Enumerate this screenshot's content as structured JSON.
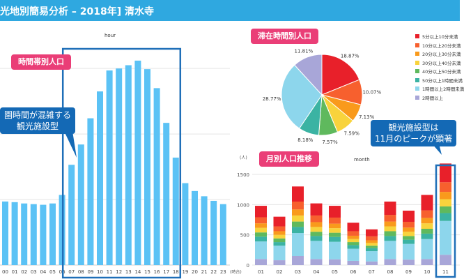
{
  "header": {
    "title": "光地別簡易分析 – 2018年] 清水寺"
  },
  "hourly": {
    "title": "hour",
    "label": "時間帯別人口",
    "unit_label": "(時台)",
    "callout_lines": [
      "園時間が混雑する",
      "観光施設型"
    ],
    "chart_data": {
      "type": "bar",
      "categories": [
        "00",
        "01",
        "02",
        "03",
        "04",
        "05",
        "06",
        "07",
        "08",
        "09",
        "10",
        "11",
        "12",
        "13",
        "14",
        "15",
        "16",
        "17",
        "18",
        "19",
        "20",
        "21",
        "22",
        "23"
      ],
      "values": [
        970,
        960,
        940,
        930,
        920,
        940,
        1070,
        1530,
        1840,
        2240,
        2650,
        2970,
        3000,
        3050,
        3120,
        2990,
        2700,
        2170,
        1640,
        1250,
        1130,
        1050,
        980,
        930
      ],
      "colors": {
        "bar": "#5bc2f5",
        "grid": "#e5e5e5",
        "highlight": "#1f6fb8"
      }
    }
  },
  "composition": {
    "label": "滞在時間別人口",
    "chart_data": {
      "type": "pie",
      "slices": [
        {
          "name": "5分以上10分未満",
          "value": 18.87,
          "label": "18.87%",
          "color": "#e8202a"
        },
        {
          "name": "10分以上20分未満",
          "value": 10.07,
          "label": "10.07%",
          "color": "#f7602e"
        },
        {
          "name": "20分以上30分未満",
          "value": 7.13,
          "label": "7.13%",
          "color": "#f99a1c"
        },
        {
          "name": "30分以上40分未満",
          "value": 7.59,
          "label": "7.59%",
          "color": "#f8d33c"
        },
        {
          "name": "40分以上50分未満",
          "value": 7.57,
          "label": "7.57%",
          "color": "#5fb95d"
        },
        {
          "name": "50分以上1時間未満",
          "value": 8.18,
          "label": "8.18%",
          "color": "#3bb3a3"
        },
        {
          "name": "1時間以上2時間未満",
          "value": 28.77,
          "label": "28.77%",
          "color": "#8dd6ec"
        },
        {
          "name": "2時間以上",
          "value": 11.81,
          "label": "11.81%",
          "color": "#a8a6d8"
        }
      ]
    },
    "legend": [
      "5分以上10分未満",
      "10分以上20分未満",
      "20分以上30分未満",
      "30分以上40分未満",
      "40分以上50分未満",
      "50分以上1時間未満",
      "1時間以上2時間未満",
      "2時間以上"
    ]
  },
  "monthly": {
    "title": "month",
    "label": "月別人口推移",
    "y_unit": "(人)",
    "callout_lines": [
      "観光施設型は",
      "11月のピークが顕著"
    ],
    "chart_data": {
      "type": "bar",
      "stacked": true,
      "categories": [
        "01",
        "02",
        "03",
        "04",
        "05",
        "06",
        "07",
        "08",
        "09",
        "10",
        "11"
      ],
      "yticks": [
        0,
        500,
        1000,
        1500
      ],
      "ylim": [
        0,
        1700
      ],
      "series": [
        {
          "name": "2時間以上",
          "color": "#a8a6d8",
          "values": [
            100,
            80,
            150,
            100,
            95,
            70,
            60,
            100,
            90,
            100,
            170
          ]
        },
        {
          "name": "1時間以上2時間未満",
          "color": "#8dd6ec",
          "values": [
            290,
            240,
            380,
            300,
            290,
            200,
            170,
            300,
            260,
            330,
            560
          ]
        },
        {
          "name": "50分以上1時間未満",
          "color": "#3bb3a3",
          "values": [
            80,
            60,
            100,
            80,
            80,
            60,
            50,
            80,
            70,
            90,
            130
          ]
        },
        {
          "name": "40分以上50分未満",
          "color": "#5fb95d",
          "values": [
            70,
            60,
            90,
            70,
            70,
            50,
            40,
            80,
            60,
            80,
            110
          ]
        },
        {
          "name": "30分以上40分未満",
          "color": "#f8d33c",
          "values": [
            75,
            60,
            100,
            80,
            75,
            50,
            45,
            80,
            70,
            90,
            120
          ]
        },
        {
          "name": "20分以上30分未満",
          "color": "#f99a1c",
          "values": [
            75,
            60,
            100,
            80,
            75,
            55,
            45,
            80,
            70,
            90,
            120
          ]
        },
        {
          "name": "10分以上20分未満",
          "color": "#f7602e",
          "values": [
            100,
            80,
            130,
            110,
            100,
            75,
            65,
            110,
            95,
            125,
            160
          ]
        },
        {
          "name": "5分以上10分未満",
          "color": "#e8202a",
          "values": [
            190,
            160,
            250,
            200,
            195,
            140,
            115,
            220,
            185,
            255,
            310
          ]
        }
      ],
      "highlight_category": "11"
    }
  }
}
